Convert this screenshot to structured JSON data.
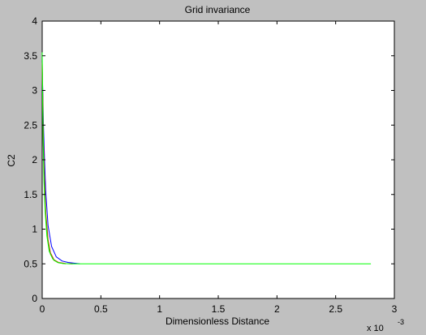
{
  "chart_data": {
    "type": "line",
    "title": "Grid invariance",
    "xlabel": "Dimensionless Distance",
    "ylabel": "C2",
    "x_scale_label": "x 10",
    "x_scale_exponent": "-3",
    "xlim": [
      0,
      3
    ],
    "ylim": [
      0,
      4
    ],
    "x_ticks": [
      0,
      0.5,
      1,
      1.5,
      2,
      2.5,
      3
    ],
    "x_tick_labels": [
      "0",
      "0.5",
      "1",
      "1.5",
      "2",
      "2.5",
      "3"
    ],
    "y_ticks": [
      0,
      0.5,
      1,
      1.5,
      2,
      2.5,
      3,
      3.5,
      4
    ],
    "y_tick_labels": [
      "0",
      "0.5",
      "1",
      "1.5",
      "2",
      "2.5",
      "3",
      "3.5",
      "4"
    ],
    "grid": false,
    "background": "#ffffff",
    "figure_background": "#c0c0c0",
    "series": [
      {
        "color": "#0000ff",
        "x": [
          0,
          0.005,
          0.01,
          0.02,
          0.03,
          0.05,
          0.08,
          0.12,
          0.17,
          0.22,
          0.27,
          0.32
        ],
        "y": [
          3.3,
          3.0,
          2.55,
          2.0,
          1.55,
          1.05,
          0.75,
          0.6,
          0.54,
          0.52,
          0.51,
          0.5
        ]
      },
      {
        "color": "#ff0000",
        "x": [
          0,
          0.005,
          0.01,
          0.02,
          0.03,
          0.05,
          0.07,
          0.1,
          0.14,
          0.2,
          0.26
        ],
        "y": [
          3.4,
          2.9,
          2.3,
          1.7,
          1.25,
          0.85,
          0.66,
          0.56,
          0.52,
          0.505,
          0.5
        ]
      },
      {
        "color": "#808000",
        "x": [
          0,
          0.005,
          0.01,
          0.02,
          0.03,
          0.05,
          0.07,
          0.1,
          0.14,
          0.2
        ],
        "y": [
          3.4,
          2.8,
          2.2,
          1.6,
          1.2,
          0.82,
          0.64,
          0.55,
          0.515,
          0.5
        ]
      },
      {
        "color": "#00ff00",
        "x": [
          0,
          0.004,
          0.008,
          0.015,
          0.025,
          0.04,
          0.06,
          0.09,
          0.13,
          0.18,
          0.25,
          0.5,
          1.0,
          1.5,
          2.0,
          2.5,
          2.8
        ],
        "y": [
          3.55,
          2.9,
          2.3,
          1.7,
          1.25,
          0.9,
          0.68,
          0.57,
          0.52,
          0.505,
          0.5,
          0.5,
          0.5,
          0.5,
          0.5,
          0.5,
          0.5
        ]
      }
    ]
  }
}
